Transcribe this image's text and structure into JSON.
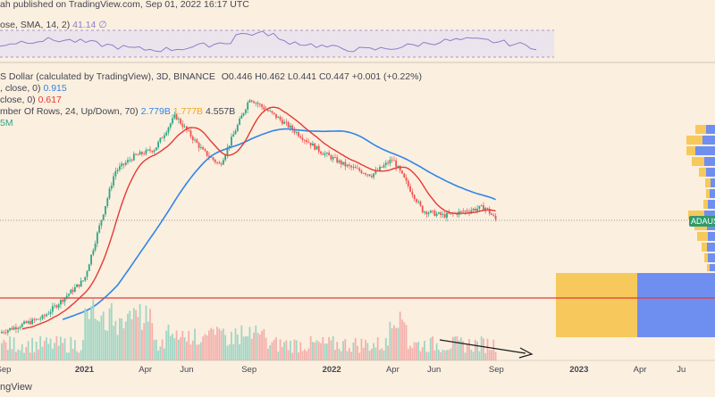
{
  "header": {
    "publish_text": "ah published on TradingView.com, Sep 01, 2022 16:17 UTC",
    "rsi_label": "ose, SMA, 14, 2)",
    "rsi_value": "41.14",
    "rsi_symbol": "∅",
    "symbol_text": "S Dollar (calculated by TradingView), 3D, BINANCE",
    "ohlc": {
      "o": "O0.446",
      "h": "H0.462",
      "l": "L0.441",
      "c": "C0.447",
      "chg": "+0.001 (+0.22%)"
    },
    "ma1_label": ", close, 0)",
    "ma1_value": "0.915",
    "ma2_label": "close, 0)",
    "ma2_value": "0.617",
    "vrvp_label": "mber Of Rows, 24, Up/Down, 70)",
    "vrvp_up": "2.779B",
    "vrvp_down": "1.777B",
    "vrvp_total": "4.557B",
    "vol_label": "5M"
  },
  "price_tag": "ADAUS",
  "footer_brand": "ngView",
  "colors": {
    "background": "#fbefdf",
    "up_candle": "#2ba786",
    "down_candle": "#ef5350",
    "ma_fast": "#e53935",
    "ma_slow": "#2f86e8",
    "rsi_line": "#8a7fc9",
    "vp_up": "#f7c95c",
    "vp_down": "#6f8ff0",
    "support_line": "#e53935",
    "arrow": "#1a1a1a"
  },
  "chart_data": {
    "type": "candlestick",
    "interval": "3D",
    "exchange": "BINANCE",
    "x_tick_labels": [
      "Sep",
      "2021",
      "Apr",
      "Jun",
      "Sep",
      "2022",
      "Apr",
      "Jun",
      "Sep",
      "2023",
      "Apr",
      "Ju"
    ],
    "x_tick_dates": [
      "2020-09-01",
      "2021-01-01",
      "2021-04-01",
      "2021-06-01",
      "2021-09-01",
      "2022-01-01",
      "2022-04-01",
      "2022-06-01",
      "2022-09-01",
      "2023-01-01",
      "2023-04-01",
      "2023-06-01"
    ],
    "price_close_approx": [
      {
        "date": "2020-09-01",
        "close": 0.08
      },
      {
        "date": "2020-11-01",
        "close": 0.1
      },
      {
        "date": "2021-01-01",
        "close": 0.18
      },
      {
        "date": "2021-02-15",
        "close": 0.95
      },
      {
        "date": "2021-03-15",
        "close": 1.2
      },
      {
        "date": "2021-04-15",
        "close": 1.35
      },
      {
        "date": "2021-05-15",
        "close": 2.25
      },
      {
        "date": "2021-06-25",
        "close": 1.3
      },
      {
        "date": "2021-07-20",
        "close": 1.05
      },
      {
        "date": "2021-09-02",
        "close": 2.95
      },
      {
        "date": "2021-10-15",
        "close": 2.15
      },
      {
        "date": "2021-12-15",
        "close": 1.3
      },
      {
        "date": "2022-01-20",
        "close": 1.05
      },
      {
        "date": "2022-03-01",
        "close": 0.9
      },
      {
        "date": "2022-04-01",
        "close": 1.15
      },
      {
        "date": "2022-05-15",
        "close": 0.52
      },
      {
        "date": "2022-06-15",
        "close": 0.48
      },
      {
        "date": "2022-08-15",
        "close": 0.55
      },
      {
        "date": "2022-09-01",
        "close": 0.447
      }
    ],
    "current": {
      "open": 0.446,
      "high": 0.462,
      "low": 0.441,
      "close": 0.447,
      "change": 0.001,
      "change_pct": 0.22
    },
    "moving_averages": [
      {
        "label_value": 0.915,
        "color": "#2f86e8"
      },
      {
        "label_value": 0.617,
        "color": "#e53935"
      }
    ],
    "volume_profile": {
      "rows": 24,
      "up": "2.779B",
      "down": "1.777B",
      "total": "4.557B"
    },
    "rsi": {
      "value": 41.14
    },
    "annotations": [
      "horizontal support line",
      "descending volume arrow"
    ],
    "grid": false
  }
}
